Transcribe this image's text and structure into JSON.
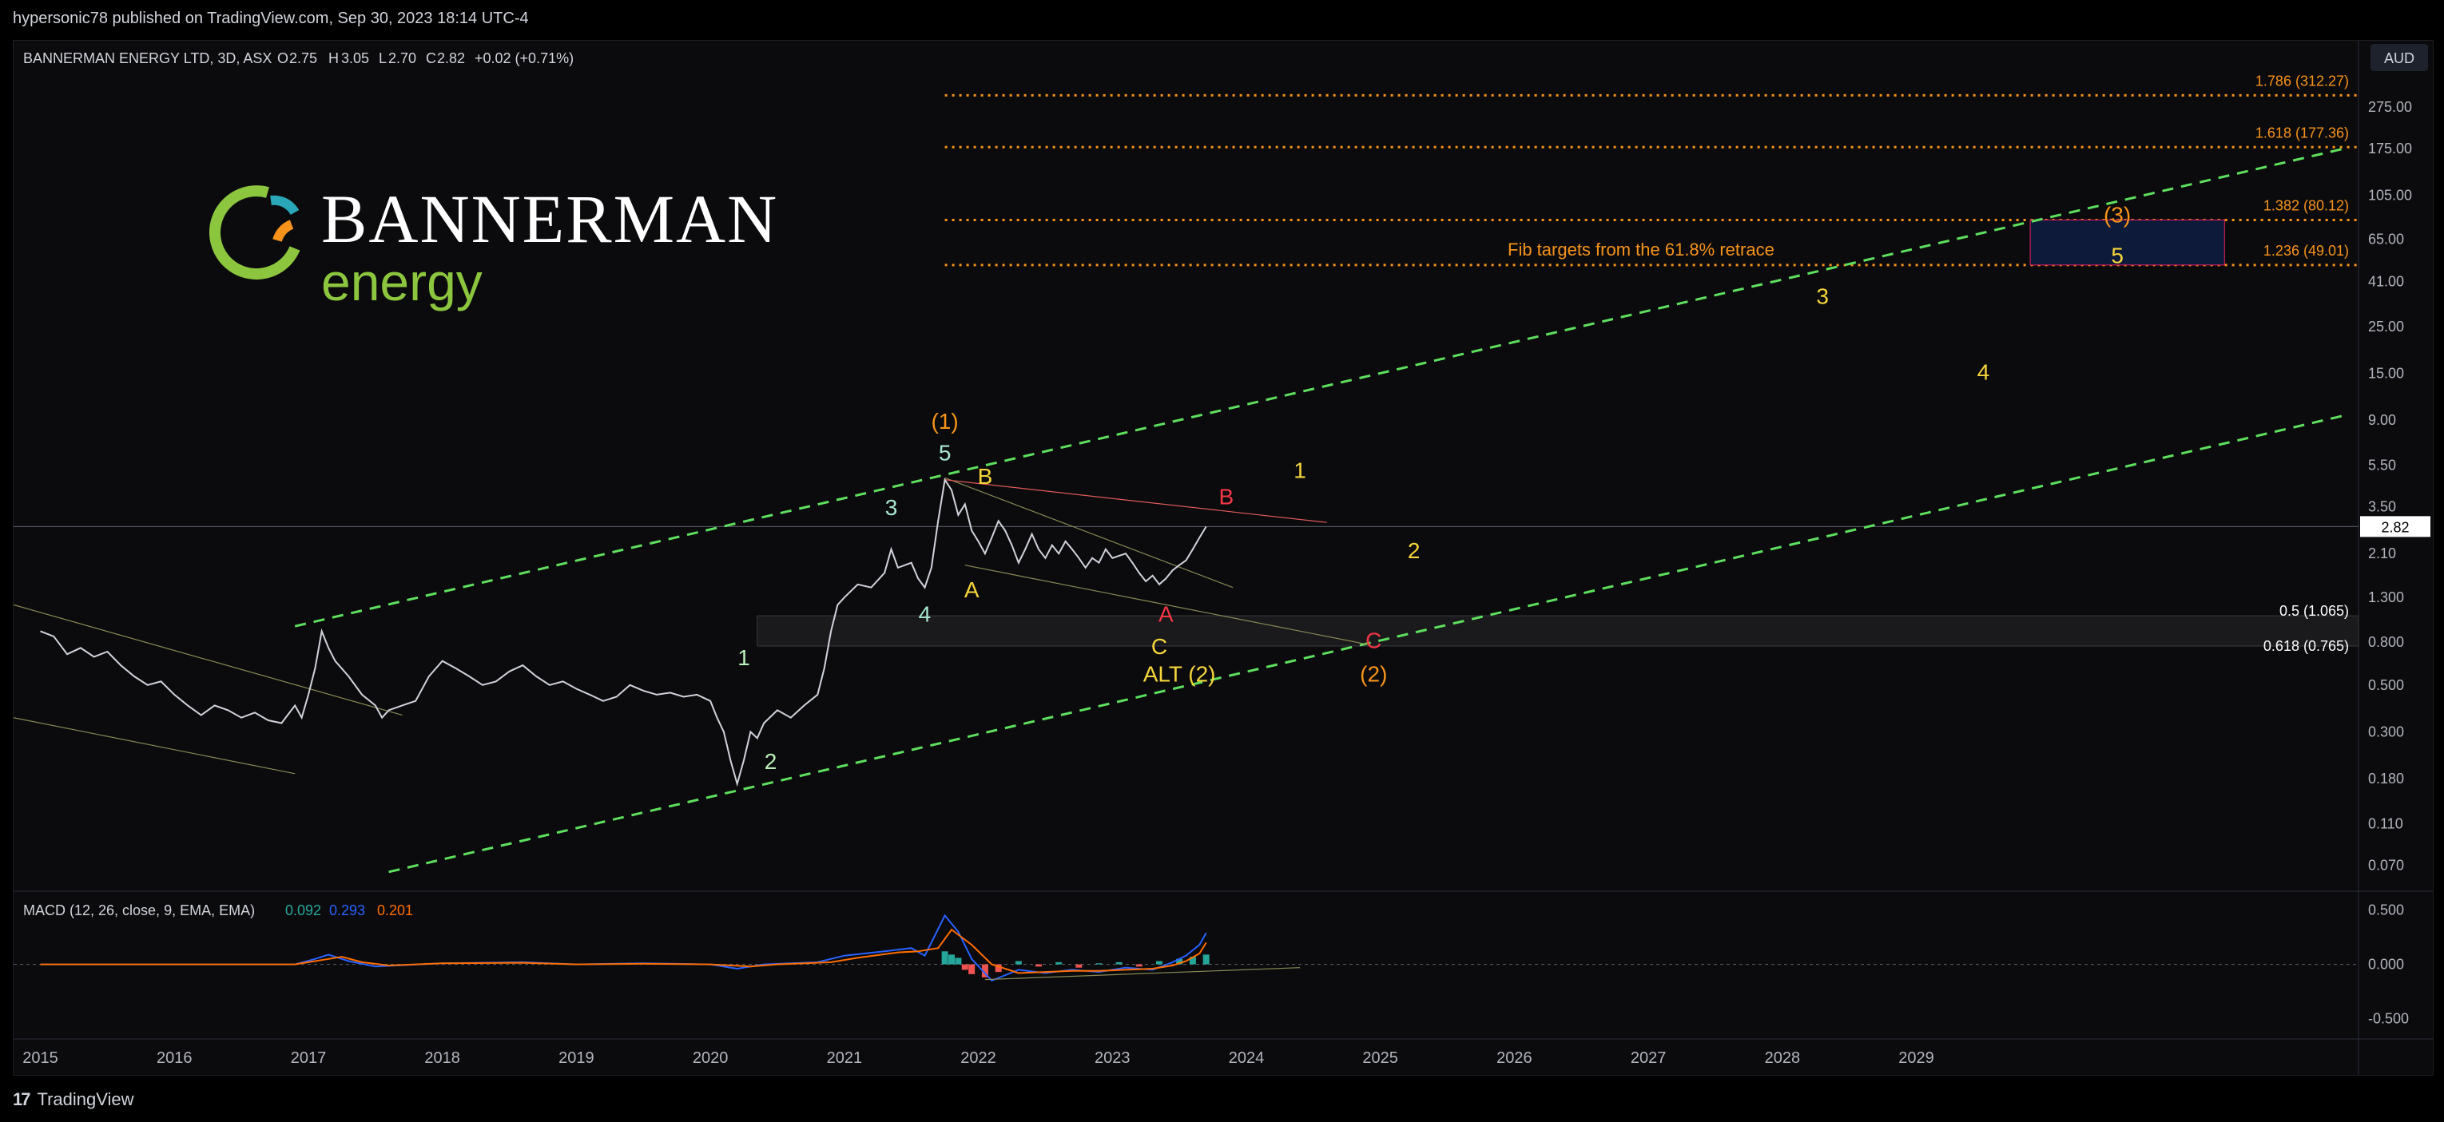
{
  "publish_info": "hypersonic78 published on TradingView.com, Sep 30, 2023 18:14 UTC-4",
  "footer": {
    "brand": "TradingView",
    "logo_mark": "17"
  },
  "symbol_header": {
    "name": "BANNERMAN ENERGY LTD, 3D, ASX",
    "o_label": "O",
    "o": "2.75",
    "h_label": "H",
    "h": "3.05",
    "l_label": "L",
    "l": "2.70",
    "c_label": "C",
    "c": "2.82",
    "change": "+0.02 (+0.71%)"
  },
  "currency_button": "AUD",
  "logo": {
    "name": "BANNERMAN",
    "sub": "energy"
  },
  "colors": {
    "up": "#d1d4dc",
    "fib": "#f7931a",
    "channel": "#5ee05e",
    "yellow": "#f5d53b",
    "orange": "#f7931a",
    "cyan": "#a8e6cf",
    "red": "#f23645",
    "green_lbl": "#b8f0b8",
    "macd": "#2962ff",
    "signal": "#ff6d00"
  },
  "chart_data": {
    "type": "line",
    "title": "BANNERMAN ENERGY LTD, 3D, ASX",
    "y_scale": "log",
    "ylim": [
      0.055,
      400
    ],
    "y_ticks": [
      {
        "label": "275.00",
        "v": 275
      },
      {
        "label": "175.00",
        "v": 175
      },
      {
        "label": "105.00",
        "v": 105
      },
      {
        "label": "65.00",
        "v": 65
      },
      {
        "label": "41.00",
        "v": 41
      },
      {
        "label": "25.00",
        "v": 25
      },
      {
        "label": "15.00",
        "v": 15
      },
      {
        "label": "9.00",
        "v": 9
      },
      {
        "label": "5.50",
        "v": 5.5
      },
      {
        "label": "3.50",
        "v": 3.5
      },
      {
        "label": "2.10",
        "v": 2.1
      },
      {
        "label": "1.300",
        "v": 1.3
      },
      {
        "label": "0.800",
        "v": 0.8
      },
      {
        "label": "0.500",
        "v": 0.5
      },
      {
        "label": "0.300",
        "v": 0.3
      },
      {
        "label": "0.180",
        "v": 0.18
      },
      {
        "label": "0.110",
        "v": 0.11
      },
      {
        "label": "0.070",
        "v": 0.07
      }
    ],
    "x_ticks": [
      "2015",
      "2016",
      "2017",
      "2018",
      "2019",
      "2020",
      "2021",
      "2022",
      "2023",
      "2024",
      "2025",
      "2026",
      "2027",
      "2028",
      "2029"
    ],
    "last_price": "2.82",
    "price_series": {
      "name": "",
      "points": [
        [
          2015.0,
          0.9
        ],
        [
          2015.1,
          0.85
        ],
        [
          2015.2,
          0.7
        ],
        [
          2015.3,
          0.75
        ],
        [
          2015.4,
          0.68
        ],
        [
          2015.5,
          0.72
        ],
        [
          2015.6,
          0.62
        ],
        [
          2015.7,
          0.55
        ],
        [
          2015.8,
          0.5
        ],
        [
          2015.9,
          0.52
        ],
        [
          2016.0,
          0.45
        ],
        [
          2016.1,
          0.4
        ],
        [
          2016.2,
          0.36
        ],
        [
          2016.3,
          0.4
        ],
        [
          2016.4,
          0.38
        ],
        [
          2016.5,
          0.35
        ],
        [
          2016.6,
          0.37
        ],
        [
          2016.7,
          0.34
        ],
        [
          2016.8,
          0.33
        ],
        [
          2016.9,
          0.4
        ],
        [
          2016.95,
          0.35
        ],
        [
          2017.0,
          0.45
        ],
        [
          2017.05,
          0.6
        ],
        [
          2017.1,
          0.9
        ],
        [
          2017.15,
          0.75
        ],
        [
          2017.2,
          0.65
        ],
        [
          2017.3,
          0.55
        ],
        [
          2017.4,
          0.45
        ],
        [
          2017.5,
          0.4
        ],
        [
          2017.55,
          0.35
        ],
        [
          2017.6,
          0.38
        ],
        [
          2017.7,
          0.4
        ],
        [
          2017.8,
          0.42
        ],
        [
          2017.9,
          0.55
        ],
        [
          2018.0,
          0.65
        ],
        [
          2018.1,
          0.6
        ],
        [
          2018.2,
          0.55
        ],
        [
          2018.3,
          0.5
        ],
        [
          2018.4,
          0.52
        ],
        [
          2018.5,
          0.58
        ],
        [
          2018.6,
          0.62
        ],
        [
          2018.7,
          0.55
        ],
        [
          2018.8,
          0.5
        ],
        [
          2018.9,
          0.52
        ],
        [
          2019.0,
          0.48
        ],
        [
          2019.1,
          0.45
        ],
        [
          2019.2,
          0.42
        ],
        [
          2019.3,
          0.44
        ],
        [
          2019.4,
          0.5
        ],
        [
          2019.5,
          0.47
        ],
        [
          2019.6,
          0.45
        ],
        [
          2019.7,
          0.46
        ],
        [
          2019.8,
          0.44
        ],
        [
          2019.9,
          0.45
        ],
        [
          2020.0,
          0.42
        ],
        [
          2020.05,
          0.35
        ],
        [
          2020.1,
          0.3
        ],
        [
          2020.15,
          0.22
        ],
        [
          2020.2,
          0.17
        ],
        [
          2020.25,
          0.22
        ],
        [
          2020.3,
          0.3
        ],
        [
          2020.35,
          0.28
        ],
        [
          2020.4,
          0.33
        ],
        [
          2020.5,
          0.38
        ],
        [
          2020.6,
          0.35
        ],
        [
          2020.7,
          0.4
        ],
        [
          2020.8,
          0.45
        ],
        [
          2020.85,
          0.6
        ],
        [
          2020.9,
          0.9
        ],
        [
          2020.95,
          1.2
        ],
        [
          2021.0,
          1.3
        ],
        [
          2021.1,
          1.5
        ],
        [
          2021.2,
          1.45
        ],
        [
          2021.3,
          1.7
        ],
        [
          2021.35,
          2.2
        ],
        [
          2021.4,
          1.8
        ],
        [
          2021.5,
          1.9
        ],
        [
          2021.55,
          1.6
        ],
        [
          2021.6,
          1.45
        ],
        [
          2021.65,
          1.8
        ],
        [
          2021.7,
          3.0
        ],
        [
          2021.75,
          4.7
        ],
        [
          2021.8,
          4.2
        ],
        [
          2021.85,
          3.2
        ],
        [
          2021.9,
          3.6
        ],
        [
          2021.95,
          2.7
        ],
        [
          2022.0,
          2.4
        ],
        [
          2022.05,
          2.1
        ],
        [
          2022.1,
          2.5
        ],
        [
          2022.15,
          3.0
        ],
        [
          2022.2,
          2.7
        ],
        [
          2022.25,
          2.3
        ],
        [
          2022.3,
          1.9
        ],
        [
          2022.35,
          2.2
        ],
        [
          2022.4,
          2.6
        ],
        [
          2022.45,
          2.2
        ],
        [
          2022.5,
          2.0
        ],
        [
          2022.55,
          2.3
        ],
        [
          2022.6,
          2.1
        ],
        [
          2022.65,
          2.4
        ],
        [
          2022.7,
          2.2
        ],
        [
          2022.75,
          2.0
        ],
        [
          2022.8,
          1.8
        ],
        [
          2022.85,
          2.0
        ],
        [
          2022.9,
          1.9
        ],
        [
          2022.95,
          2.2
        ],
        [
          2023.0,
          2.0
        ],
        [
          2023.1,
          2.1
        ],
        [
          2023.15,
          1.9
        ],
        [
          2023.2,
          1.7
        ],
        [
          2023.25,
          1.55
        ],
        [
          2023.3,
          1.65
        ],
        [
          2023.35,
          1.5
        ],
        [
          2023.4,
          1.6
        ],
        [
          2023.45,
          1.75
        ],
        [
          2023.5,
          1.85
        ],
        [
          2023.55,
          1.95
        ],
        [
          2023.6,
          2.2
        ],
        [
          2023.65,
          2.5
        ],
        [
          2023.7,
          2.82
        ]
      ]
    },
    "fib_levels": [
      {
        "label": "1.786 (312.27)",
        "v": 312.27
      },
      {
        "label": "1.618 (177.36)",
        "v": 177.36
      },
      {
        "label": "1.382 (80.12)",
        "v": 80.12
      },
      {
        "label": "1.236 (49.01)",
        "v": 49.01
      }
    ],
    "retrace_zone": [
      {
        "label": "0.5 (1.065)",
        "v": 1.065
      },
      {
        "label": "0.618 (0.765)",
        "v": 0.765
      }
    ],
    "fib_note": "Fib targets from the 61.8% retrace",
    "channel_upper": [
      [
        2016.9,
        0.95
      ],
      [
        2032.2,
        175
      ]
    ],
    "channel_lower": [
      [
        2017.6,
        0.065
      ],
      [
        2032.2,
        9.5
      ]
    ],
    "wave_labels": [
      {
        "text": "(1)",
        "x": 2021.75,
        "y": 8.2,
        "color": "orange"
      },
      {
        "text": "5",
        "x": 2021.75,
        "y": 5.8,
        "color": "cyan"
      },
      {
        "text": "3",
        "x": 2021.35,
        "y": 3.2,
        "color": "cyan"
      },
      {
        "text": "4",
        "x": 2021.6,
        "y": 1.0,
        "color": "cyan"
      },
      {
        "text": "1",
        "x": 2020.25,
        "y": 0.62,
        "color": "green_lbl"
      },
      {
        "text": "2",
        "x": 2020.45,
        "y": 0.2,
        "color": "green_lbl"
      },
      {
        "text": "B",
        "x": 2022.05,
        "y": 4.5,
        "color": "yellow"
      },
      {
        "text": "A",
        "x": 2021.95,
        "y": 1.3,
        "color": "yellow"
      },
      {
        "text": "C",
        "x": 2023.35,
        "y": 0.7,
        "color": "yellow"
      },
      {
        "text": "ALT (2)",
        "x": 2023.5,
        "y": 0.52,
        "color": "yellow"
      },
      {
        "text": "A",
        "x": 2023.4,
        "y": 1.0,
        "color": "red"
      },
      {
        "text": "B",
        "x": 2023.85,
        "y": 3.6,
        "color": "red"
      },
      {
        "text": "C",
        "x": 2024.95,
        "y": 0.75,
        "color": "red"
      },
      {
        "text": "(2)",
        "x": 2024.95,
        "y": 0.52,
        "color": "orange"
      },
      {
        "text": "1",
        "x": 2024.4,
        "y": 4.8,
        "color": "yellow"
      },
      {
        "text": "2",
        "x": 2025.25,
        "y": 2.0,
        "color": "yellow"
      },
      {
        "text": "3",
        "x": 2028.3,
        "y": 32,
        "color": "yellow"
      },
      {
        "text": "4",
        "x": 2029.5,
        "y": 14,
        "color": "yellow"
      },
      {
        "text": "5",
        "x": 2030.5,
        "y": 50,
        "color": "yellow"
      },
      {
        "text": "(3)",
        "x": 2030.5,
        "y": 78,
        "color": "orange"
      }
    ],
    "macd": {
      "title": "MACD (12, 26, close, 9, EMA, EMA)",
      "values": [
        "0.092",
        "0.293",
        "0.201"
      ],
      "y_ticks": [
        {
          "label": "0.500",
          "v": 0.5
        },
        {
          "label": "0.000",
          "v": 0
        },
        {
          "label": "-0.500",
          "v": -0.5
        }
      ],
      "ylim": [
        -0.65,
        0.6
      ],
      "macd_line": [
        [
          2015,
          0
        ],
        [
          2016,
          0
        ],
        [
          2016.9,
          0
        ],
        [
          2017.05,
          0.05
        ],
        [
          2017.15,
          0.09
        ],
        [
          2017.3,
          0.03
        ],
        [
          2017.5,
          -0.02
        ],
        [
          2018,
          0.01
        ],
        [
          2018.6,
          0.02
        ],
        [
          2019,
          0
        ],
        [
          2019.5,
          0.01
        ],
        [
          2020,
          0
        ],
        [
          2020.2,
          -0.04
        ],
        [
          2020.4,
          0
        ],
        [
          2020.8,
          0.02
        ],
        [
          2021,
          0.08
        ],
        [
          2021.3,
          0.12
        ],
        [
          2021.5,
          0.15
        ],
        [
          2021.6,
          0.08
        ],
        [
          2021.75,
          0.45
        ],
        [
          2021.85,
          0.3
        ],
        [
          2021.95,
          0.05
        ],
        [
          2022.1,
          -0.15
        ],
        [
          2022.3,
          -0.05
        ],
        [
          2022.5,
          -0.08
        ],
        [
          2022.7,
          -0.05
        ],
        [
          2022.9,
          -0.07
        ],
        [
          2023.1,
          -0.03
        ],
        [
          2023.3,
          -0.05
        ],
        [
          2023.45,
          0.02
        ],
        [
          2023.55,
          0.08
        ],
        [
          2023.65,
          0.18
        ],
        [
          2023.7,
          0.29
        ]
      ],
      "signal_line": [
        [
          2015,
          0
        ],
        [
          2016,
          0
        ],
        [
          2016.9,
          0
        ],
        [
          2017.1,
          0.04
        ],
        [
          2017.25,
          0.07
        ],
        [
          2017.4,
          0.02
        ],
        [
          2017.6,
          -0.01
        ],
        [
          2018,
          0.01
        ],
        [
          2018.6,
          0.015
        ],
        [
          2019,
          0
        ],
        [
          2019.5,
          0.005
        ],
        [
          2020,
          0
        ],
        [
          2020.3,
          -0.02
        ],
        [
          2020.5,
          0
        ],
        [
          2020.9,
          0.02
        ],
        [
          2021.1,
          0.06
        ],
        [
          2021.4,
          0.11
        ],
        [
          2021.55,
          0.12
        ],
        [
          2021.7,
          0.15
        ],
        [
          2021.8,
          0.32
        ],
        [
          2021.95,
          0.18
        ],
        [
          2022.1,
          0.0
        ],
        [
          2022.3,
          -0.08
        ],
        [
          2022.5,
          -0.07
        ],
        [
          2022.7,
          -0.06
        ],
        [
          2022.9,
          -0.06
        ],
        [
          2023.1,
          -0.05
        ],
        [
          2023.3,
          -0.04
        ],
        [
          2023.45,
          -0.01
        ],
        [
          2023.55,
          0.03
        ],
        [
          2023.65,
          0.1
        ],
        [
          2023.7,
          0.2
        ]
      ],
      "histogram": [
        [
          2021.75,
          0.12
        ],
        [
          2021.8,
          0.09
        ],
        [
          2021.85,
          0.06
        ],
        [
          2021.9,
          -0.05
        ],
        [
          2021.95,
          -0.09
        ],
        [
          2022.05,
          -0.12
        ],
        [
          2022.15,
          -0.07
        ],
        [
          2022.3,
          0.03
        ],
        [
          2022.45,
          -0.02
        ],
        [
          2022.6,
          0.02
        ],
        [
          2022.75,
          -0.03
        ],
        [
          2022.9,
          0.01
        ],
        [
          2023.05,
          0.02
        ],
        [
          2023.2,
          -0.02
        ],
        [
          2023.35,
          0.03
        ],
        [
          2023.5,
          0.05
        ],
        [
          2023.6,
          0.07
        ],
        [
          2023.7,
          0.09
        ]
      ]
    }
  }
}
